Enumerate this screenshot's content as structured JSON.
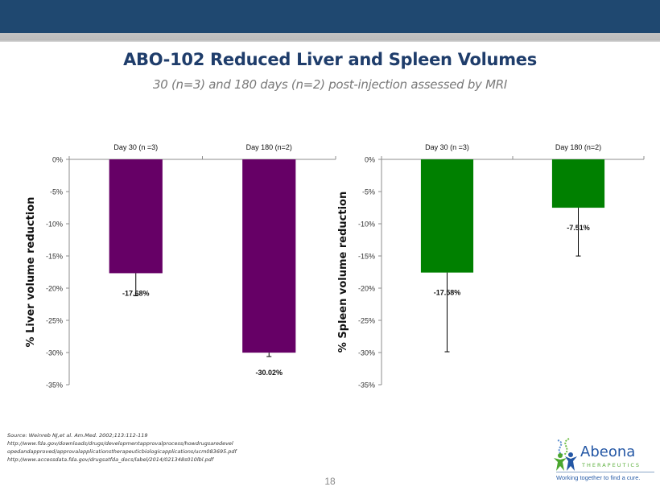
{
  "header": {
    "title": "ABO-102  Reduced Liver and Spleen Volumes",
    "subtitle": "30 (n=3) and 180 days (n=2) post-injection  assessed by MRI"
  },
  "colors": {
    "header_bar": "#1f4870",
    "liver_bar": "#660066",
    "spleen_bar": "#008000",
    "title": "#1f3d6b"
  },
  "chart_data": [
    {
      "type": "bar",
      "name": "liver",
      "title": "",
      "xlabel": "",
      "ylabel": "% Liver volume reduction",
      "categories": [
        "Day 30 (n =3)",
        "Day 180 (n=2)"
      ],
      "values": [
        -17.68,
        -30.02
      ],
      "error_bars": [
        3.5,
        0.6
      ],
      "data_labels": [
        "-17.68%",
        "-30.02%"
      ],
      "ylim": [
        -35,
        0
      ],
      "yticks": [
        0,
        -5,
        -10,
        -15,
        -20,
        -25,
        -30,
        -35
      ],
      "ytick_labels": [
        "0%",
        "-5%",
        "-10%",
        "-15%",
        "-20%",
        "-25%",
        "-30%",
        "-35%"
      ],
      "category_axis": "top",
      "grid": false,
      "color": "#660066"
    },
    {
      "type": "bar",
      "name": "spleen",
      "title": "",
      "xlabel": "",
      "ylabel": "% Spleen  volume reduction",
      "categories": [
        "Day 30 (n =3)",
        "Day 180 (n=2)"
      ],
      "values": [
        -17.58,
        -7.51
      ],
      "error_bars": [
        12.3,
        7.5
      ],
      "data_labels": [
        "-17.58%",
        "-7.51%"
      ],
      "ylim": [
        -35,
        0
      ],
      "yticks": [
        0,
        -5,
        -10,
        -15,
        -20,
        -25,
        -30,
        -35
      ],
      "ytick_labels": [
        "0%",
        "-5%",
        "-10%",
        "-15%",
        "-20%",
        "-25%",
        "-30%",
        "-35%"
      ],
      "category_axis": "top",
      "grid": false,
      "color": "#008000"
    }
  ],
  "footer": {
    "sources": [
      "Source: Weinreb  NJ,et al. Am.Med. 2002;113:112-119",
      "http://www.fda.gov/downloads/drugs/developmentapprovalprocess/howdrugsaredevel",
      "opedandapproved/approvalapplicationstherapeuticbiologicapplications/ucm083695.pdf",
      "http://www.accessdata.fda.gov/drugsatfda_docs/label/2014/021348s010lbl.pdf"
    ],
    "page_number": "18",
    "logo": {
      "name": "Abeona",
      "subtitle": "THERAPEUTICS",
      "tagline": "Working together to find a cure."
    }
  }
}
